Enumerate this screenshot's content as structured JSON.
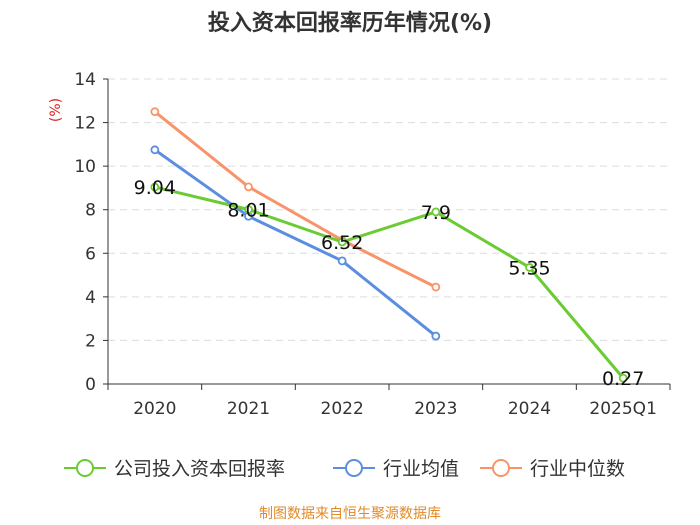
{
  "chart_data": {
    "type": "line",
    "title": "投入资本回报率历年情况(%)",
    "ylabel": "(%)",
    "xlabel": "",
    "categories": [
      "2020",
      "2021",
      "2022",
      "2023",
      "2024",
      "2025Q1"
    ],
    "ylim": [
      0,
      14
    ],
    "yticks": [
      0,
      2,
      4,
      6,
      8,
      10,
      12,
      14
    ],
    "grid": true,
    "legend_position": "bottom",
    "series": [
      {
        "name": "公司投入资本回报率",
        "color": "#6acb32",
        "values": [
          9.04,
          8.01,
          6.52,
          7.9,
          5.35,
          0.27
        ],
        "labels": [
          "9.04",
          "8.01",
          "6.52",
          "7.9",
          "5.35",
          "0.27"
        ]
      },
      {
        "name": "行业均值",
        "color": "#5b8ee0",
        "values": [
          10.75,
          7.7,
          5.65,
          2.2,
          null,
          null
        ]
      },
      {
        "name": "行业中位数",
        "color": "#f7946a",
        "values": [
          12.5,
          9.05,
          6.6,
          4.45,
          null,
          null
        ]
      }
    ]
  },
  "source_text": "制图数据来自恒生聚源数据库"
}
